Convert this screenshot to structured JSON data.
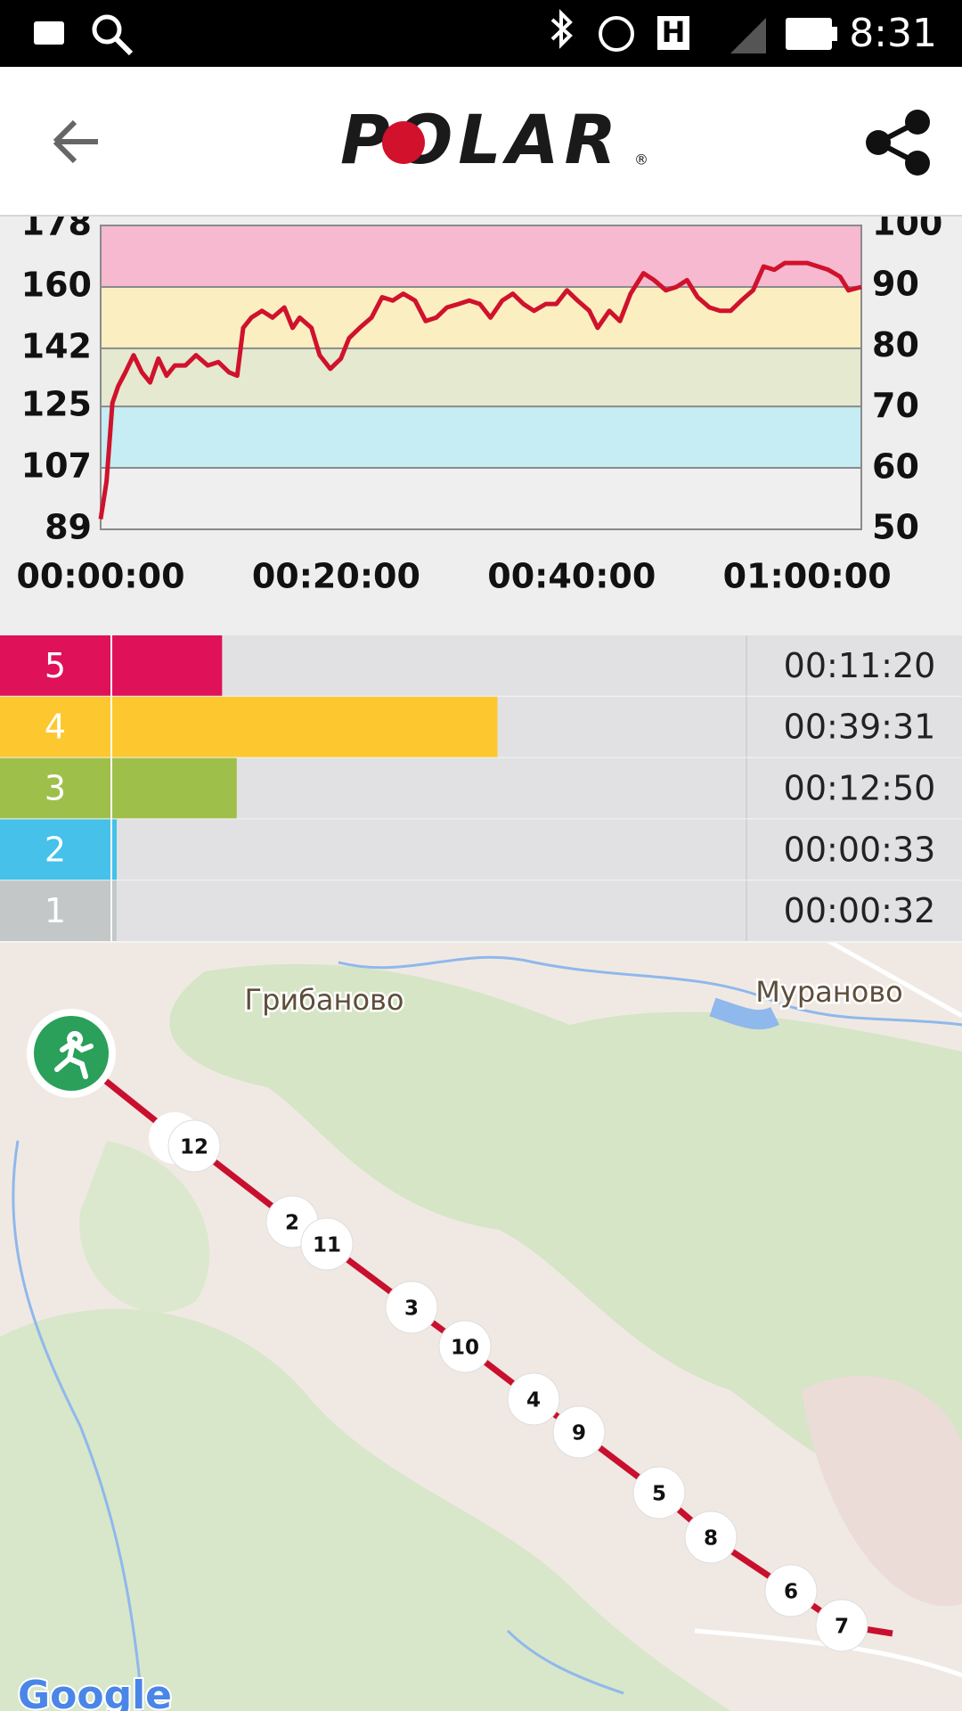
{
  "status_bar": {
    "network": "H",
    "time": "8:31"
  },
  "header": {
    "logo": "POLAR",
    "logo_mark": "®"
  },
  "chart_data": [
    {
      "type": "line",
      "x": [
        0,
        0.5,
        1.0,
        1.5,
        2.1,
        2.8,
        3.5,
        4.2,
        4.9,
        5.6,
        6.3,
        7.2,
        8.1,
        9.1,
        10.0,
        10.9,
        11.6,
        12.1,
        12.8,
        13.7,
        14.6,
        15.6,
        16.3,
        16.9,
        17.9,
        18.6,
        19.5,
        20.4,
        21.1,
        22.0,
        23.0,
        23.9,
        24.8,
        25.7,
        26.7,
        27.6,
        28.5,
        29.4,
        30.4,
        31.3,
        32.2,
        33.1,
        34.1,
        35.0,
        35.9,
        36.8,
        37.8,
        38.7,
        39.6,
        40.5,
        41.5,
        42.2,
        43.2,
        44.1,
        45.0,
        46.1,
        47.0,
        48.0,
        48.9,
        49.8,
        50.7,
        51.7,
        52.6,
        53.5,
        54.4,
        55.4,
        56.3,
        57.2,
        58.1,
        60.0,
        61.8,
        62.8,
        63.5,
        64.6
      ],
      "values": [
        92,
        103,
        126,
        131,
        135,
        140,
        135,
        132,
        139,
        134,
        137,
        137,
        140,
        137,
        138,
        135,
        134,
        148,
        151,
        153,
        151,
        154,
        148,
        151,
        148,
        140,
        136,
        139,
        145,
        148,
        151,
        157,
        156,
        158,
        156,
        150,
        151,
        154,
        155,
        156,
        155,
        151,
        156,
        158,
        155,
        153,
        155,
        155,
        159,
        156,
        153,
        148,
        153,
        150,
        158,
        164,
        162,
        159,
        160,
        162,
        157,
        154,
        153,
        153,
        156,
        159,
        166,
        165,
        167,
        167,
        165,
        163,
        159,
        160
      ],
      "color": "#d0122c",
      "xlim": [
        0,
        64.6
      ],
      "xticks": [
        {
          "value": 0,
          "label": "00:00:00"
        },
        {
          "value": 20,
          "label": "00:20:00"
        },
        {
          "value": 40,
          "label": "00:40:00"
        },
        {
          "value": 60,
          "label": "01:00:00"
        }
      ],
      "ylim": [
        89,
        178
      ],
      "yticks": [
        89,
        107,
        125,
        142,
        160,
        178
      ],
      "y2lim": [
        50,
        100
      ],
      "y2ticks": [
        50,
        60,
        70,
        80,
        90,
        100
      ],
      "zone_colors": [
        "#efefef",
        "#c6ecf4",
        "#e4e9cf",
        "#fbefc2",
        "#f6b9cf"
      ],
      "grid": true
    },
    {
      "type": "bar",
      "orientation": "horizontal",
      "categories": [
        "5",
        "4",
        "3",
        "2",
        "1"
      ],
      "values": [
        680,
        2371,
        770,
        33,
        32
      ],
      "value_labels": [
        "00:11:20",
        "00:39:31",
        "00:12:50",
        "00:00:33",
        "00:00:32"
      ],
      "colors": [
        "#df1159",
        "#fdc82f",
        "#9fbf4b",
        "#45c1ea",
        "#c3c7c7"
      ],
      "xlim": [
        0,
        3900
      ]
    }
  ],
  "map": {
    "places": [
      "Грибаново",
      "Мураново"
    ],
    "markers": [
      "12",
      "2",
      "11",
      "3",
      "10",
      "4",
      "9",
      "5",
      "8",
      "6",
      "7"
    ],
    "attribution": "Google"
  }
}
